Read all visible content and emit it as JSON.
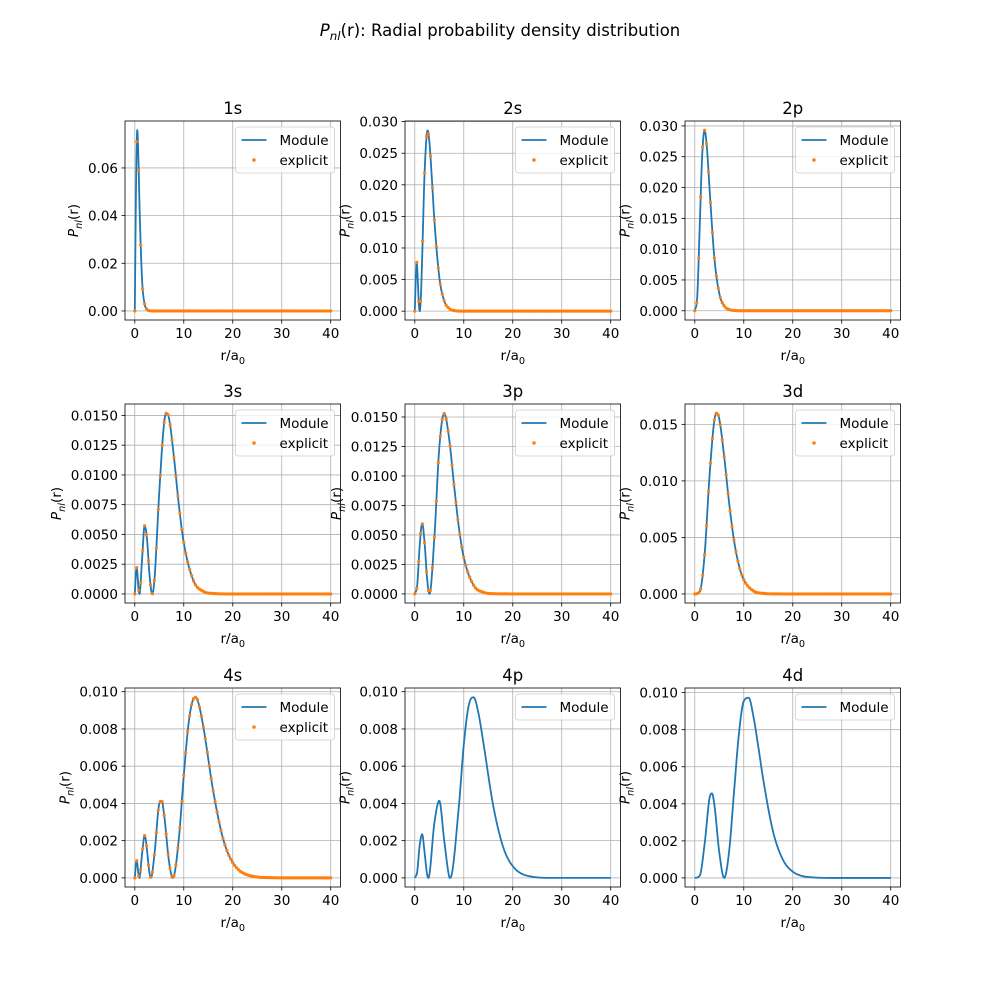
{
  "figure": {
    "suptitle": {
      "symbol": "P",
      "subscript": "nl",
      "rest": "(r): Radial probability density distribution"
    },
    "colors": {
      "Module": "#1f77b4",
      "explicit": "#ff7f0e",
      "grid": "#b0b0b0"
    }
  },
  "chart_data": [
    {
      "type": "line",
      "title": "1s",
      "xlabel": "r/a_0",
      "ylabel": "P_nl(r)",
      "grid": true,
      "legend": "top-right",
      "xlim": [
        -2,
        42
      ],
      "ylim": [
        -0.0038,
        0.0797
      ],
      "xticks": [
        "0",
        "10",
        "20",
        "30",
        "40"
      ],
      "yticks": [
        "0.00",
        "0.02",
        "0.04",
        "0.06"
      ],
      "series": [
        {
          "name": "Module",
          "style": "line",
          "x": [
            0,
            0.25,
            0.5,
            0.75,
            1,
            1.5,
            2,
            2.5,
            3,
            4,
            40
          ],
          "y": [
            0,
            0.0517,
            0.0759,
            0.0629,
            0.0412,
            0.0125,
            0.003,
            0.00064,
            0.00012,
            0,
            0
          ]
        },
        {
          "name": "explicit",
          "style": "markers",
          "x": [
            0,
            0.25,
            0.5,
            0.75,
            1,
            1.5,
            2,
            2.5,
            3,
            4,
            40
          ],
          "y": [
            0,
            0.0517,
            0.0759,
            0.0629,
            0.0412,
            0.0125,
            0.003,
            0.00064,
            0.00012,
            0,
            0
          ]
        }
      ]
    },
    {
      "type": "line",
      "title": "2s",
      "xlabel": "r/a_0",
      "ylabel": "P_nl(r)",
      "grid": true,
      "legend": "top-right",
      "xlim": [
        -2,
        42
      ],
      "ylim": [
        -0.0014,
        0.0301
      ],
      "xticks": [
        "0",
        "10",
        "20",
        "30",
        "40"
      ],
      "yticks": [
        "0.000",
        "0.005",
        "0.010",
        "0.015",
        "0.020",
        "0.025",
        "0.030"
      ],
      "series": [
        {
          "name": "Module",
          "style": "line",
          "x": [
            0,
            0.2,
            0.38,
            0.6,
            0.8,
            1,
            1.25,
            1.5,
            2,
            2.62,
            3,
            3.5,
            4,
            5,
            6,
            7,
            8,
            10,
            40
          ],
          "y": [
            0,
            0.00512,
            0.00776,
            0.00518,
            0.00154,
            0,
            0.00239,
            0.00836,
            0.0219,
            0.0286,
            0.0266,
            0.0208,
            0.0144,
            0.00542,
            0.00165,
            0.00044,
            0.000105,
            0,
            0
          ]
        },
        {
          "name": "explicit",
          "style": "markers",
          "x": [
            0,
            0.2,
            0.38,
            0.6,
            0.8,
            1,
            1.25,
            1.5,
            2,
            2.62,
            3,
            3.5,
            4,
            5,
            6,
            7,
            8,
            10,
            40
          ],
          "y": [
            0,
            0.00512,
            0.00776,
            0.00518,
            0.00154,
            0,
            0.00239,
            0.00836,
            0.0219,
            0.0286,
            0.0266,
            0.0208,
            0.0144,
            0.00542,
            0.00165,
            0.00044,
            0.000105,
            0,
            0
          ]
        }
      ]
    },
    {
      "type": "line",
      "title": "2p",
      "xlabel": "r/a_0",
      "ylabel": "P_nl(r)",
      "grid": true,
      "legend": "top-right",
      "xlim": [
        -2,
        42
      ],
      "ylim": [
        -0.0015,
        0.0308
      ],
      "xticks": [
        "0",
        "10",
        "20",
        "30",
        "40"
      ],
      "yticks": [
        "0.000",
        "0.005",
        "0.010",
        "0.015",
        "0.020",
        "0.025",
        "0.030"
      ],
      "series": [
        {
          "name": "Module",
          "style": "line",
          "x": [
            0,
            0.5,
            1,
            1.5,
            2,
            2.5,
            3,
            4,
            5,
            6,
            7,
            8,
            10,
            40
          ],
          "y": [
            0,
            0.00229,
            0.0135,
            0.0251,
            0.0293,
            0.0262,
            0.02,
            0.00856,
            0.00283,
            0.00079,
            0.0002,
            5e-05,
            0,
            0
          ]
        },
        {
          "name": "explicit",
          "style": "markers",
          "x": [
            0,
            0.5,
            1,
            1.5,
            2,
            2.5,
            3,
            4,
            5,
            6,
            7,
            8,
            10,
            40
          ],
          "y": [
            0,
            0.00229,
            0.0135,
            0.0251,
            0.0293,
            0.0262,
            0.02,
            0.00856,
            0.00283,
            0.00079,
            0.0002,
            5e-05,
            0,
            0
          ]
        }
      ]
    },
    {
      "type": "line",
      "title": "3s",
      "xlabel": "r/a_0",
      "ylabel": "P_nl(r)",
      "grid": true,
      "legend": "top-right",
      "xlim": [
        -2,
        42
      ],
      "ylim": [
        -0.00076,
        0.01596
      ],
      "xticks": [
        "0",
        "10",
        "20",
        "30",
        "40"
      ],
      "yticks": [
        "0.0000",
        "0.0025",
        "0.0050",
        "0.0075",
        "0.0100",
        "0.0125",
        "0.0150"
      ],
      "series": [
        {
          "name": "Module",
          "style": "line",
          "x": [
            0,
            0.25,
            0.375,
            0.5,
            0.75,
            0.95,
            1.5,
            2,
            2.5,
            3,
            3.55,
            4,
            5,
            6,
            6.5,
            7,
            8,
            9,
            10,
            12,
            14,
            16,
            20,
            40
          ],
          "y": [
            0,
            0.00187,
            0.00223,
            0.00189,
            0.00051,
            0,
            0.00301,
            0.00573,
            0.0046,
            0.00163,
            0,
            0.00114,
            0.00858,
            0.01443,
            0.0152,
            0.01473,
            0.01146,
            0.00747,
            0.00431,
            0.0011,
            0.00022,
            4e-05,
            0,
            0
          ]
        },
        {
          "name": "explicit",
          "style": "markers",
          "x": [
            0,
            0.25,
            0.375,
            0.5,
            0.75,
            0.95,
            1.5,
            2,
            2.5,
            3,
            3.55,
            4,
            5,
            6,
            6.5,
            7,
            8,
            9,
            10,
            12,
            14,
            16,
            20,
            40
          ],
          "y": [
            0,
            0.00187,
            0.00223,
            0.00189,
            0.00051,
            0,
            0.00301,
            0.00573,
            0.0046,
            0.00163,
            0,
            0.00114,
            0.00858,
            0.01443,
            0.0152,
            0.01473,
            0.01146,
            0.00747,
            0.00431,
            0.0011,
            0.00022,
            4e-05,
            0,
            0
          ]
        }
      ]
    },
    {
      "type": "line",
      "title": "3p",
      "xlabel": "r/a_0",
      "ylabel": "P_nl(r)",
      "grid": true,
      "legend": "top-right",
      "xlim": [
        -2,
        42
      ],
      "ylim": [
        -0.00077,
        0.0161
      ],
      "xticks": [
        "0",
        "10",
        "20",
        "30",
        "40"
      ],
      "yticks": [
        "0.0000",
        "0.0025",
        "0.0050",
        "0.0075",
        "0.0100",
        "0.0125",
        "0.0150"
      ],
      "series": [
        {
          "name": "Module",
          "style": "line",
          "x": [
            0,
            0.5,
            1,
            1.5,
            2,
            2.5,
            3,
            4,
            5,
            6,
            7,
            8,
            9,
            10,
            12,
            14,
            16,
            20,
            40
          ],
          "y": [
            0,
            0.00078,
            0.0041,
            0.006,
            0.00433,
            0.00136,
            0,
            0.00481,
            0.01238,
            0.0153,
            0.01321,
            0.00928,
            0.00564,
            0.00309,
            0.00074,
            0.00014,
            2e-05,
            0,
            0
          ]
        },
        {
          "name": "explicit",
          "style": "markers",
          "x": [
            0,
            0.5,
            1,
            1.5,
            2,
            2.5,
            3,
            4,
            5,
            6,
            7,
            8,
            9,
            10,
            12,
            14,
            16,
            20,
            40
          ],
          "y": [
            0,
            0.00078,
            0.0041,
            0.006,
            0.00433,
            0.00136,
            0,
            0.00481,
            0.01238,
            0.0153,
            0.01321,
            0.00928,
            0.00564,
            0.00309,
            0.00074,
            0.00014,
            2e-05,
            0,
            0
          ]
        }
      ]
    },
    {
      "type": "line",
      "title": "3d",
      "xlabel": "r/a_0",
      "ylabel": "P_nl(r)",
      "grid": true,
      "legend": "top-right",
      "xlim": [
        -2,
        42
      ],
      "ylim": [
        -0.0008,
        0.0168
      ],
      "xticks": [
        "0",
        "10",
        "20",
        "30",
        "40"
      ],
      "yticks": [
        "0.000",
        "0.005",
        "0.010",
        "0.015"
      ],
      "series": [
        {
          "name": "Module",
          "style": "line",
          "x": [
            0,
            1,
            2,
            3,
            4,
            4.5,
            5,
            6,
            7,
            8,
            9,
            10,
            12,
            14,
            16,
            20,
            40
          ],
          "y": [
            0,
            0.0002,
            0.00346,
            0.01038,
            0.01538,
            0.016,
            0.01547,
            0.01215,
            0.00809,
            0.00475,
            0.00254,
            0.00126,
            0.00026,
            5e-05,
            1e-05,
            0,
            0
          ]
        },
        {
          "name": "explicit",
          "style": "markers",
          "x": [
            0,
            1,
            2,
            3,
            4,
            4.5,
            5,
            6,
            7,
            8,
            9,
            10,
            12,
            14,
            16,
            20,
            40
          ],
          "y": [
            0,
            0.0002,
            0.00346,
            0.01038,
            0.01538,
            0.016,
            0.01547,
            0.01215,
            0.00809,
            0.00475,
            0.00254,
            0.00126,
            0.00026,
            5e-05,
            1e-05,
            0,
            0
          ]
        }
      ]
    },
    {
      "type": "line",
      "title": "4s",
      "xlabel": "r/a_0",
      "ylabel": "P_nl(r)",
      "grid": true,
      "legend": "top-right",
      "xlim": [
        -2,
        42
      ],
      "ylim": [
        -0.00049,
        0.0102
      ],
      "xticks": [
        "0",
        "10",
        "20",
        "30",
        "40"
      ],
      "yticks": [
        "0.000",
        "0.002",
        "0.004",
        "0.006",
        "0.008",
        "0.010"
      ],
      "series": [
        {
          "name": "Module",
          "style": "line",
          "x": [
            0,
            0.25,
            0.375,
            0.5,
            0.75,
            0.94,
            1.5,
            2,
            2.25,
            2.5,
            3,
            3.3,
            4,
            5,
            5.5,
            6,
            7,
            7.76,
            9,
            10,
            11,
            12,
            12.5,
            13,
            14,
            16,
            18,
            20,
            24,
            28,
            32,
            40
          ],
          "y": [
            0,
            0.00079,
            0.00093,
            0.00078,
            0.00019,
            0,
            0.00134,
            0.00227,
            0.00204,
            0.00147,
            0.00026,
            0,
            0.00123,
            0.00398,
            0.00414,
            0.00336,
            0.00085,
            0,
            0.00212,
            0.0055,
            0.00833,
            0.00963,
            0.0097,
            0.00939,
            0.00811,
            0.00468,
            0.00213,
            0.00082,
            9e-05,
            1e-05,
            0,
            0
          ]
        },
        {
          "name": "explicit",
          "style": "markers",
          "x": [
            0,
            0.25,
            0.375,
            0.5,
            0.75,
            0.94,
            1.5,
            2,
            2.25,
            2.5,
            3,
            3.3,
            4,
            5,
            5.5,
            6,
            7,
            7.76,
            9,
            10,
            11,
            12,
            12.5,
            13,
            14,
            16,
            18,
            20,
            24,
            28,
            32,
            40
          ],
          "y": [
            0,
            0.00079,
            0.00093,
            0.00078,
            0.00019,
            0,
            0.00134,
            0.00227,
            0.00204,
            0.00147,
            0.00026,
            0,
            0.00123,
            0.00398,
            0.00414,
            0.00336,
            0.00085,
            0,
            0.00212,
            0.0055,
            0.00833,
            0.00963,
            0.0097,
            0.00939,
            0.00811,
            0.00468,
            0.00213,
            0.00082,
            9e-05,
            1e-05,
            0,
            0
          ]
        }
      ]
    },
    {
      "type": "line",
      "title": "4p",
      "xlabel": "r/a_0",
      "ylabel": "P_nl(r)",
      "grid": true,
      "legend": "top-right",
      "xlim": [
        -2,
        42
      ],
      "ylim": [
        -0.00049,
        0.0102
      ],
      "xticks": [
        "0",
        "10",
        "20",
        "30",
        "40"
      ],
      "yticks": [
        "0.000",
        "0.002",
        "0.004",
        "0.006",
        "0.008",
        "0.010"
      ],
      "series": [
        {
          "name": "Module",
          "style": "line",
          "x": [
            0,
            0.5,
            1,
            1.5,
            2,
            2.5,
            2.77,
            4,
            5,
            6,
            7,
            7.23,
            9,
            10,
            11,
            12,
            13,
            14,
            16,
            18,
            20,
            24,
            28,
            40
          ],
          "y": [
            0,
            0.00035,
            0.00175,
            0.00234,
            0.00136,
            0.0002,
            0,
            0.00295,
            0.00414,
            0.00202,
            9e-05,
            0,
            0.00385,
            0.00715,
            0.00925,
            0.0097,
            0.00884,
            0.00726,
            0.0039,
            0.00169,
            0.00063,
            6e-05,
            0,
            0
          ]
        }
      ]
    },
    {
      "type": "line",
      "title": "4d",
      "xlabel": "r/a_0",
      "ylabel": "P_nl(r)",
      "grid": true,
      "legend": "top-right",
      "xlim": [
        -2,
        42
      ],
      "ylim": [
        -0.00049,
        0.01025
      ],
      "xticks": [
        "0",
        "10",
        "20",
        "30",
        "40"
      ],
      "yticks": [
        "0.000",
        "0.002",
        "0.004",
        "0.006",
        "0.008",
        "0.010"
      ],
      "series": [
        {
          "name": "Module",
          "style": "line",
          "x": [
            0,
            1,
            2,
            3,
            3.5,
            4,
            5,
            6,
            7,
            8,
            9,
            10,
            11,
            12,
            13,
            14,
            16,
            18,
            20,
            24,
            28,
            40
          ],
          "y": [
            0,
            0.00012,
            0.00182,
            0.00429,
            0.00456,
            0.00394,
            0.00138,
            0,
            0.00141,
            0.00461,
            0.00775,
            0.00954,
            0.00972,
            0.00867,
            0.00702,
            0.00527,
            0.00248,
            0.00098,
            0.00034,
            3e-05,
            0,
            0
          ]
        }
      ]
    }
  ]
}
